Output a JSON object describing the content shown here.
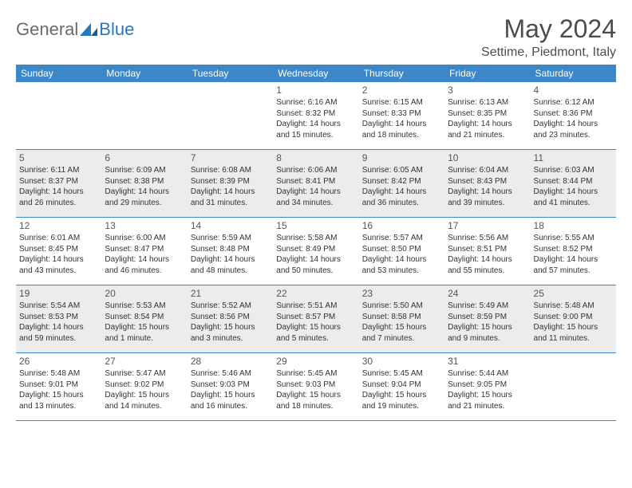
{
  "logo": {
    "part1": "General",
    "part2": "Blue"
  },
  "title": "May 2024",
  "location": "Settime, Piedmont, Italy",
  "colors": {
    "header_bg": "#3c87c7",
    "header_text": "#ffffff",
    "alt_row_bg": "#ececec",
    "border": "#3c87c7",
    "title_color": "#4c4c4c",
    "body_text": "#333333"
  },
  "weekdays": [
    "Sunday",
    "Monday",
    "Tuesday",
    "Wednesday",
    "Thursday",
    "Friday",
    "Saturday"
  ],
  "weeks": [
    {
      "alt": false,
      "days": [
        {
          "num": "",
          "sunrise": "",
          "sunset": "",
          "daylight": ""
        },
        {
          "num": "",
          "sunrise": "",
          "sunset": "",
          "daylight": ""
        },
        {
          "num": "",
          "sunrise": "",
          "sunset": "",
          "daylight": ""
        },
        {
          "num": "1",
          "sunrise": "Sunrise: 6:16 AM",
          "sunset": "Sunset: 8:32 PM",
          "daylight": "Daylight: 14 hours and 15 minutes."
        },
        {
          "num": "2",
          "sunrise": "Sunrise: 6:15 AM",
          "sunset": "Sunset: 8:33 PM",
          "daylight": "Daylight: 14 hours and 18 minutes."
        },
        {
          "num": "3",
          "sunrise": "Sunrise: 6:13 AM",
          "sunset": "Sunset: 8:35 PM",
          "daylight": "Daylight: 14 hours and 21 minutes."
        },
        {
          "num": "4",
          "sunrise": "Sunrise: 6:12 AM",
          "sunset": "Sunset: 8:36 PM",
          "daylight": "Daylight: 14 hours and 23 minutes."
        }
      ]
    },
    {
      "alt": true,
      "days": [
        {
          "num": "5",
          "sunrise": "Sunrise: 6:11 AM",
          "sunset": "Sunset: 8:37 PM",
          "daylight": "Daylight: 14 hours and 26 minutes."
        },
        {
          "num": "6",
          "sunrise": "Sunrise: 6:09 AM",
          "sunset": "Sunset: 8:38 PM",
          "daylight": "Daylight: 14 hours and 29 minutes."
        },
        {
          "num": "7",
          "sunrise": "Sunrise: 6:08 AM",
          "sunset": "Sunset: 8:39 PM",
          "daylight": "Daylight: 14 hours and 31 minutes."
        },
        {
          "num": "8",
          "sunrise": "Sunrise: 6:06 AM",
          "sunset": "Sunset: 8:41 PM",
          "daylight": "Daylight: 14 hours and 34 minutes."
        },
        {
          "num": "9",
          "sunrise": "Sunrise: 6:05 AM",
          "sunset": "Sunset: 8:42 PM",
          "daylight": "Daylight: 14 hours and 36 minutes."
        },
        {
          "num": "10",
          "sunrise": "Sunrise: 6:04 AM",
          "sunset": "Sunset: 8:43 PM",
          "daylight": "Daylight: 14 hours and 39 minutes."
        },
        {
          "num": "11",
          "sunrise": "Sunrise: 6:03 AM",
          "sunset": "Sunset: 8:44 PM",
          "daylight": "Daylight: 14 hours and 41 minutes."
        }
      ]
    },
    {
      "alt": false,
      "days": [
        {
          "num": "12",
          "sunrise": "Sunrise: 6:01 AM",
          "sunset": "Sunset: 8:45 PM",
          "daylight": "Daylight: 14 hours and 43 minutes."
        },
        {
          "num": "13",
          "sunrise": "Sunrise: 6:00 AM",
          "sunset": "Sunset: 8:47 PM",
          "daylight": "Daylight: 14 hours and 46 minutes."
        },
        {
          "num": "14",
          "sunrise": "Sunrise: 5:59 AM",
          "sunset": "Sunset: 8:48 PM",
          "daylight": "Daylight: 14 hours and 48 minutes."
        },
        {
          "num": "15",
          "sunrise": "Sunrise: 5:58 AM",
          "sunset": "Sunset: 8:49 PM",
          "daylight": "Daylight: 14 hours and 50 minutes."
        },
        {
          "num": "16",
          "sunrise": "Sunrise: 5:57 AM",
          "sunset": "Sunset: 8:50 PM",
          "daylight": "Daylight: 14 hours and 53 minutes."
        },
        {
          "num": "17",
          "sunrise": "Sunrise: 5:56 AM",
          "sunset": "Sunset: 8:51 PM",
          "daylight": "Daylight: 14 hours and 55 minutes."
        },
        {
          "num": "18",
          "sunrise": "Sunrise: 5:55 AM",
          "sunset": "Sunset: 8:52 PM",
          "daylight": "Daylight: 14 hours and 57 minutes."
        }
      ]
    },
    {
      "alt": true,
      "days": [
        {
          "num": "19",
          "sunrise": "Sunrise: 5:54 AM",
          "sunset": "Sunset: 8:53 PM",
          "daylight": "Daylight: 14 hours and 59 minutes."
        },
        {
          "num": "20",
          "sunrise": "Sunrise: 5:53 AM",
          "sunset": "Sunset: 8:54 PM",
          "daylight": "Daylight: 15 hours and 1 minute."
        },
        {
          "num": "21",
          "sunrise": "Sunrise: 5:52 AM",
          "sunset": "Sunset: 8:56 PM",
          "daylight": "Daylight: 15 hours and 3 minutes."
        },
        {
          "num": "22",
          "sunrise": "Sunrise: 5:51 AM",
          "sunset": "Sunset: 8:57 PM",
          "daylight": "Daylight: 15 hours and 5 minutes."
        },
        {
          "num": "23",
          "sunrise": "Sunrise: 5:50 AM",
          "sunset": "Sunset: 8:58 PM",
          "daylight": "Daylight: 15 hours and 7 minutes."
        },
        {
          "num": "24",
          "sunrise": "Sunrise: 5:49 AM",
          "sunset": "Sunset: 8:59 PM",
          "daylight": "Daylight: 15 hours and 9 minutes."
        },
        {
          "num": "25",
          "sunrise": "Sunrise: 5:48 AM",
          "sunset": "Sunset: 9:00 PM",
          "daylight": "Daylight: 15 hours and 11 minutes."
        }
      ]
    },
    {
      "alt": false,
      "days": [
        {
          "num": "26",
          "sunrise": "Sunrise: 5:48 AM",
          "sunset": "Sunset: 9:01 PM",
          "daylight": "Daylight: 15 hours and 13 minutes."
        },
        {
          "num": "27",
          "sunrise": "Sunrise: 5:47 AM",
          "sunset": "Sunset: 9:02 PM",
          "daylight": "Daylight: 15 hours and 14 minutes."
        },
        {
          "num": "28",
          "sunrise": "Sunrise: 5:46 AM",
          "sunset": "Sunset: 9:03 PM",
          "daylight": "Daylight: 15 hours and 16 minutes."
        },
        {
          "num": "29",
          "sunrise": "Sunrise: 5:45 AM",
          "sunset": "Sunset: 9:03 PM",
          "daylight": "Daylight: 15 hours and 18 minutes."
        },
        {
          "num": "30",
          "sunrise": "Sunrise: 5:45 AM",
          "sunset": "Sunset: 9:04 PM",
          "daylight": "Daylight: 15 hours and 19 minutes."
        },
        {
          "num": "31",
          "sunrise": "Sunrise: 5:44 AM",
          "sunset": "Sunset: 9:05 PM",
          "daylight": "Daylight: 15 hours and 21 minutes."
        },
        {
          "num": "",
          "sunrise": "",
          "sunset": "",
          "daylight": ""
        }
      ]
    }
  ]
}
